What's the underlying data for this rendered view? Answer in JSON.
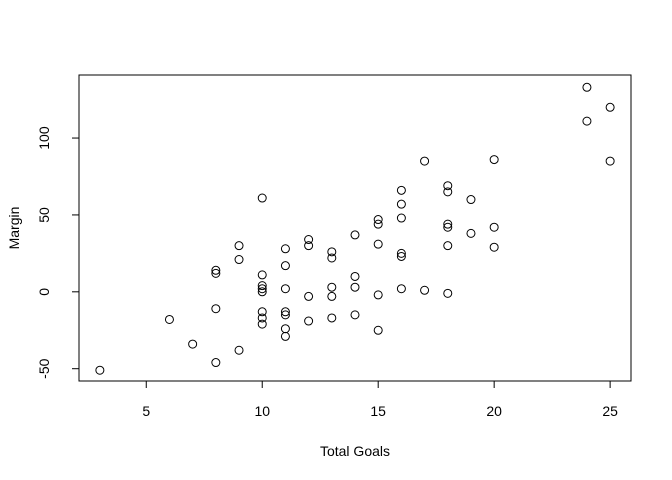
{
  "chart_data": {
    "type": "scatter",
    "xlabel": "Total Goals",
    "ylabel": "Margin",
    "xlim": [
      2.1,
      25.9
    ],
    "ylim": [
      -58,
      141
    ],
    "xticks": [
      5,
      10,
      15,
      20,
      25
    ],
    "yticks": [
      -50,
      0,
      50,
      100
    ],
    "marker": "open-circle",
    "marker_color": "#000000",
    "grid": false,
    "points": [
      {
        "x": 3,
        "y": -51
      },
      {
        "x": 6,
        "y": -18
      },
      {
        "x": 7,
        "y": -34
      },
      {
        "x": 8,
        "y": -46
      },
      {
        "x": 8,
        "y": -11
      },
      {
        "x": 8,
        "y": 12
      },
      {
        "x": 8,
        "y": 14
      },
      {
        "x": 9,
        "y": -38
      },
      {
        "x": 9,
        "y": 21
      },
      {
        "x": 9,
        "y": 30
      },
      {
        "x": 10,
        "y": -21
      },
      {
        "x": 10,
        "y": -17
      },
      {
        "x": 10,
        "y": -13
      },
      {
        "x": 10,
        "y": 0
      },
      {
        "x": 10,
        "y": 2
      },
      {
        "x": 10,
        "y": 4
      },
      {
        "x": 10,
        "y": 11
      },
      {
        "x": 10,
        "y": 61
      },
      {
        "x": 11,
        "y": -29
      },
      {
        "x": 11,
        "y": -24
      },
      {
        "x": 11,
        "y": -15
      },
      {
        "x": 11,
        "y": -13
      },
      {
        "x": 11,
        "y": 2
      },
      {
        "x": 11,
        "y": 17
      },
      {
        "x": 11,
        "y": 28
      },
      {
        "x": 12,
        "y": -19
      },
      {
        "x": 12,
        "y": -3
      },
      {
        "x": 12,
        "y": 30
      },
      {
        "x": 12,
        "y": 34
      },
      {
        "x": 13,
        "y": -17
      },
      {
        "x": 13,
        "y": -3
      },
      {
        "x": 13,
        "y": 3
      },
      {
        "x": 13,
        "y": 22
      },
      {
        "x": 13,
        "y": 26
      },
      {
        "x": 14,
        "y": -15
      },
      {
        "x": 14,
        "y": 3
      },
      {
        "x": 14,
        "y": 10
      },
      {
        "x": 14,
        "y": 37
      },
      {
        "x": 15,
        "y": -25
      },
      {
        "x": 15,
        "y": -2
      },
      {
        "x": 15,
        "y": 31
      },
      {
        "x": 15,
        "y": 44
      },
      {
        "x": 15,
        "y": 47
      },
      {
        "x": 16,
        "y": 2
      },
      {
        "x": 16,
        "y": 23
      },
      {
        "x": 16,
        "y": 25
      },
      {
        "x": 16,
        "y": 48
      },
      {
        "x": 16,
        "y": 57
      },
      {
        "x": 16,
        "y": 66
      },
      {
        "x": 17,
        "y": 1
      },
      {
        "x": 17,
        "y": 85
      },
      {
        "x": 18,
        "y": -1
      },
      {
        "x": 18,
        "y": 30
      },
      {
        "x": 18,
        "y": 42
      },
      {
        "x": 18,
        "y": 44
      },
      {
        "x": 18,
        "y": 65
      },
      {
        "x": 18,
        "y": 69
      },
      {
        "x": 19,
        "y": 38
      },
      {
        "x": 19,
        "y": 60
      },
      {
        "x": 20,
        "y": 29
      },
      {
        "x": 20,
        "y": 42
      },
      {
        "x": 20,
        "y": 86
      },
      {
        "x": 24,
        "y": 111
      },
      {
        "x": 24,
        "y": 133
      },
      {
        "x": 25,
        "y": 85
      },
      {
        "x": 25,
        "y": 120
      }
    ]
  }
}
